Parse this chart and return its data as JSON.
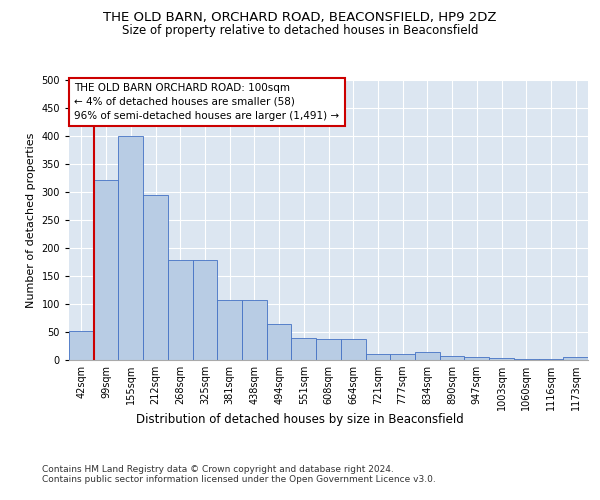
{
  "title": "THE OLD BARN, ORCHARD ROAD, BEACONSFIELD, HP9 2DZ",
  "subtitle": "Size of property relative to detached houses in Beaconsfield",
  "xlabel": "Distribution of detached houses by size in Beaconsfield",
  "ylabel": "Number of detached properties",
  "categories": [
    "42sqm",
    "99sqm",
    "155sqm",
    "212sqm",
    "268sqm",
    "325sqm",
    "381sqm",
    "438sqm",
    "494sqm",
    "551sqm",
    "608sqm",
    "664sqm",
    "721sqm",
    "777sqm",
    "834sqm",
    "890sqm",
    "947sqm",
    "1003sqm",
    "1060sqm",
    "1116sqm",
    "1173sqm"
  ],
  "values": [
    52,
    322,
    400,
    295,
    178,
    178,
    107,
    107,
    64,
    40,
    38,
    37,
    11,
    11,
    14,
    8,
    5,
    3,
    2,
    1,
    5
  ],
  "bar_color": "#b8cce4",
  "bar_edge_color": "#4472c4",
  "background_color": "#dce6f1",
  "annotation_box_color": "#ffffff",
  "annotation_border_color": "#cc0000",
  "marker_line_color": "#cc0000",
  "annotation_text": "THE OLD BARN ORCHARD ROAD: 100sqm\n← 4% of detached houses are smaller (58)\n96% of semi-detached houses are larger (1,491) →",
  "ylim": [
    0,
    500
  ],
  "yticks": [
    0,
    50,
    100,
    150,
    200,
    250,
    300,
    350,
    400,
    450,
    500
  ],
  "footer": "Contains HM Land Registry data © Crown copyright and database right 2024.\nContains public sector information licensed under the Open Government Licence v3.0.",
  "title_fontsize": 9.5,
  "subtitle_fontsize": 8.5,
  "xlabel_fontsize": 8.5,
  "ylabel_fontsize": 8,
  "tick_fontsize": 7,
  "annotation_fontsize": 7.5,
  "footer_fontsize": 6.5
}
